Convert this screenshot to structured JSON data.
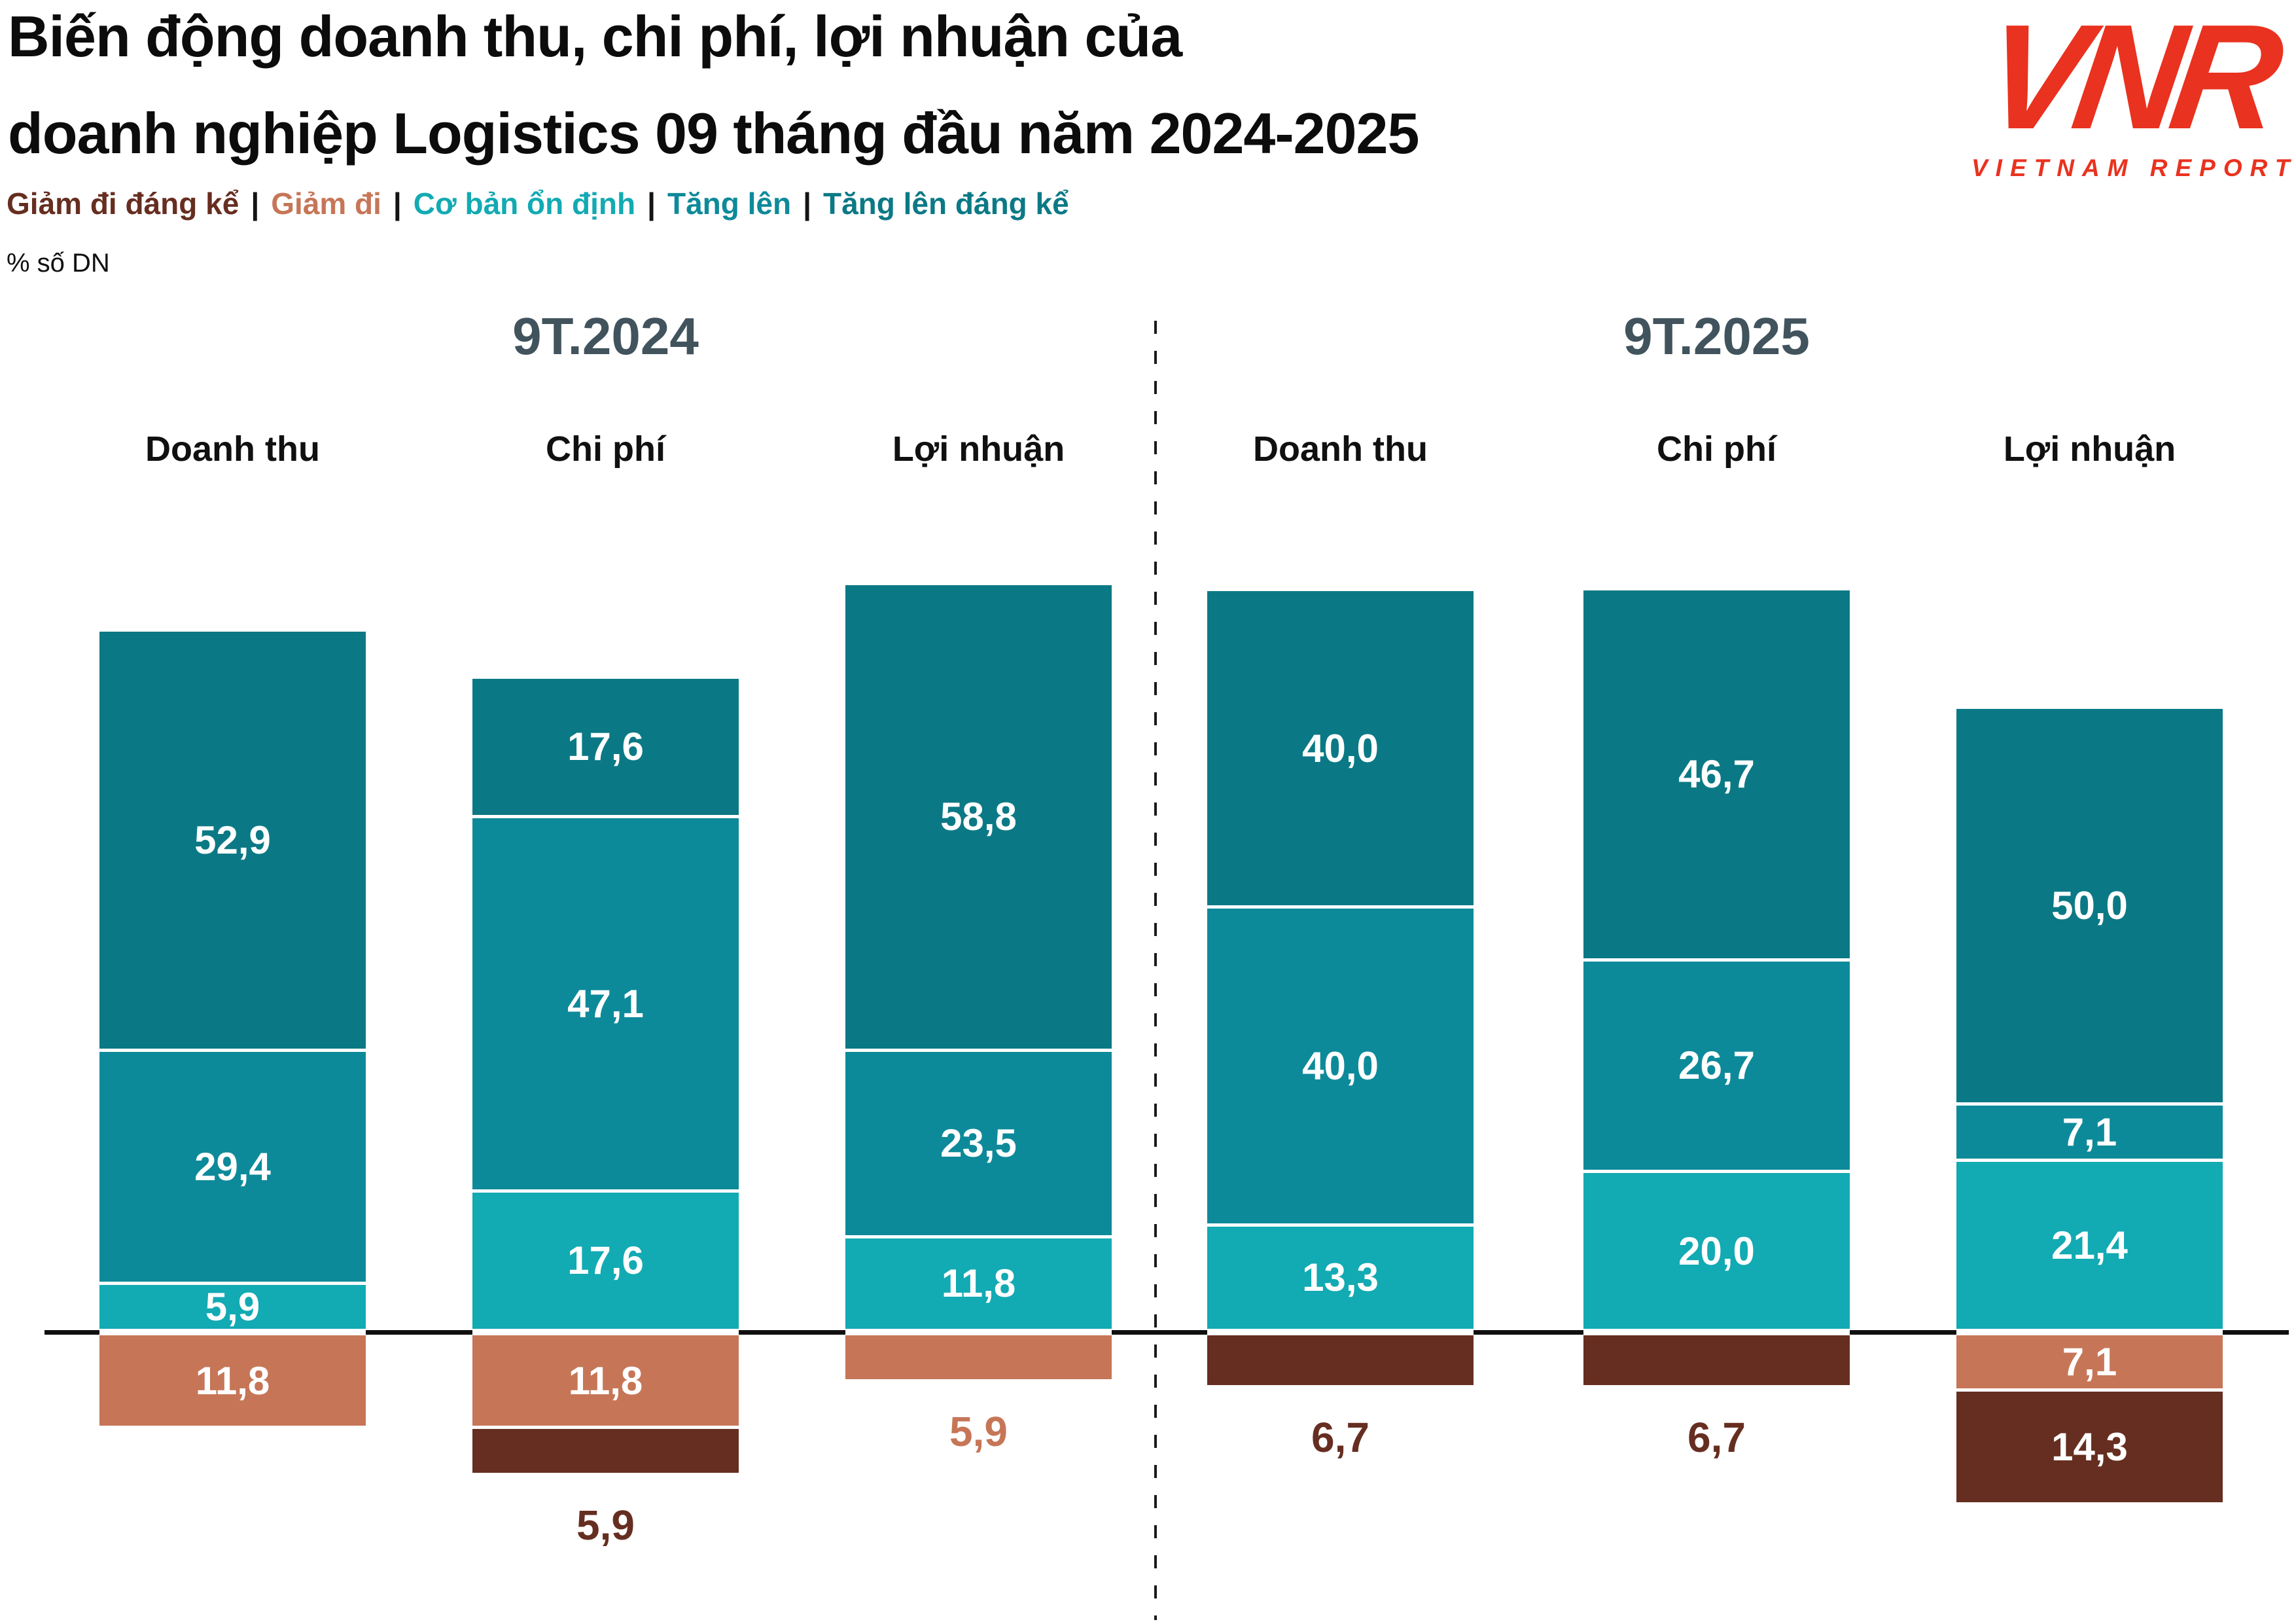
{
  "title": {
    "line1": "Biến động doanh thu, chi phí, lợi nhuận của",
    "line2": "doanh nghiệp Logistics 09 tháng đầu năm 2024-2025"
  },
  "logo": {
    "monogram": "VNR",
    "caption": "VIETNAM REPORT",
    "color": "#E9321F"
  },
  "legend_separator": "|",
  "unit_label": "% số DN",
  "chart_data": {
    "type": "bar",
    "subtype": "diverging_stacked",
    "title": "Biến động doanh thu, chi phí, lợi nhuận của doanh nghiệp Logistics 09 tháng đầu năm 2024-2025",
    "ylabel": "% số DN",
    "grid": false,
    "legend_position": "top-left",
    "value_format": "one_decimal_comma",
    "series": [
      {
        "key": "sig_decrease",
        "name": "Giảm đi đáng kể",
        "color": "#662E20"
      },
      {
        "key": "decrease",
        "name": "Giảm đi",
        "color": "#C67657"
      },
      {
        "key": "stable",
        "name": "Cơ bản ổn định",
        "color": "#12AAB3"
      },
      {
        "key": "increase",
        "name": "Tăng lên",
        "color": "#0D8A9A"
      },
      {
        "key": "sig_increase",
        "name": "Tăng lên đáng kể",
        "color": "#0B7985"
      }
    ],
    "groups": [
      {
        "title": "9T.2024",
        "bars": [
          {
            "category": "Doanh thu",
            "above": [
              {
                "series": "sig_increase",
                "value": 52.9
              },
              {
                "series": "increase",
                "value": 29.4
              },
              {
                "series": "stable",
                "value": 5.9
              }
            ],
            "below": [
              {
                "series": "decrease",
                "value": 11.8
              }
            ]
          },
          {
            "category": "Chi phí",
            "above": [
              {
                "series": "sig_increase",
                "value": 17.6
              },
              {
                "series": "increase",
                "value": 47.1
              },
              {
                "series": "stable",
                "value": 17.6
              }
            ],
            "below": [
              {
                "series": "decrease",
                "value": 11.8
              },
              {
                "series": "sig_decrease",
                "value": 5.9,
                "label_outside": true
              }
            ]
          },
          {
            "category": "Lợi nhuận",
            "above": [
              {
                "series": "sig_increase",
                "value": 58.8
              },
              {
                "series": "increase",
                "value": 23.5
              },
              {
                "series": "stable",
                "value": 11.8
              }
            ],
            "below": [
              {
                "series": "decrease",
                "value": 5.9,
                "label_outside": true
              }
            ]
          }
        ]
      },
      {
        "title": "9T.2025",
        "bars": [
          {
            "category": "Doanh thu",
            "above": [
              {
                "series": "sig_increase",
                "value": 40.0
              },
              {
                "series": "increase",
                "value": 40.0
              },
              {
                "series": "stable",
                "value": 13.3
              }
            ],
            "below": [
              {
                "series": "sig_decrease",
                "value": 6.7,
                "label_outside": true
              }
            ]
          },
          {
            "category": "Chi phí",
            "above": [
              {
                "series": "sig_increase",
                "value": 46.7
              },
              {
                "series": "increase",
                "value": 26.7
              },
              {
                "series": "stable",
                "value": 20.0
              }
            ],
            "below": [
              {
                "series": "sig_decrease",
                "value": 6.7,
                "label_outside": true
              }
            ]
          },
          {
            "category": "Lợi nhuận",
            "above": [
              {
                "series": "sig_increase",
                "value": 50.0
              },
              {
                "series": "increase",
                "value": 7.1
              },
              {
                "series": "stable",
                "value": 21.4
              }
            ],
            "below": [
              {
                "series": "decrease",
                "value": 7.1
              },
              {
                "series": "sig_decrease",
                "value": 14.3
              }
            ]
          }
        ]
      }
    ]
  }
}
